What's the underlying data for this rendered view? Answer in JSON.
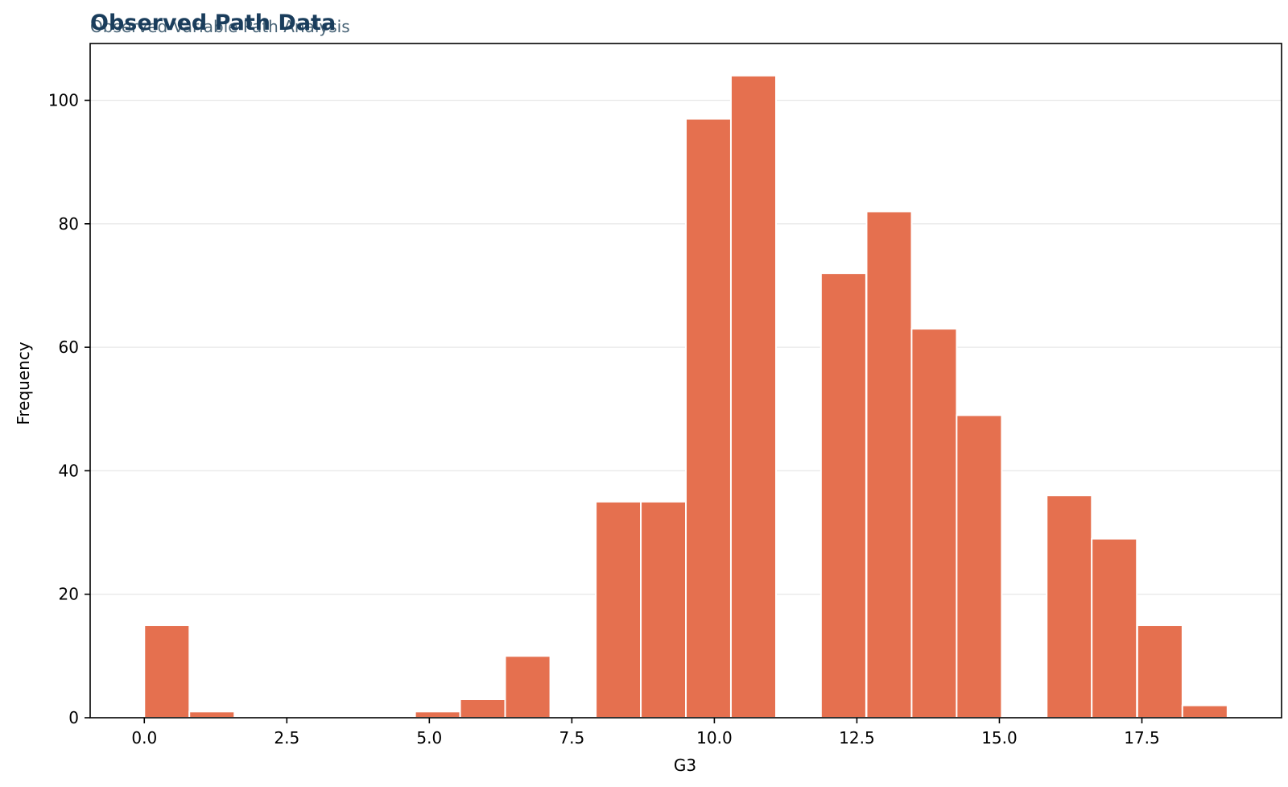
{
  "chart_data": {
    "type": "bar",
    "title": "Observed Path Data",
    "subtitle": "Observed Variable Path Analysis",
    "xlabel": "G3",
    "ylabel": "Frequency",
    "bar_color": "#e5704f",
    "bar_edge_color": "#ffffff",
    "title_color": "#1a3d5c",
    "subtitle_color": "#4a6578",
    "grid": "y-only",
    "bin_width": 0.7916,
    "bins": [
      {
        "x": 0.0,
        "count": 15
      },
      {
        "x": 0.79,
        "count": 1
      },
      {
        "x": 4.75,
        "count": 1
      },
      {
        "x": 5.54,
        "count": 3
      },
      {
        "x": 6.33,
        "count": 10
      },
      {
        "x": 7.92,
        "count": 35
      },
      {
        "x": 8.71,
        "count": 35
      },
      {
        "x": 9.5,
        "count": 97
      },
      {
        "x": 10.29,
        "count": 104
      },
      {
        "x": 11.87,
        "count": 72
      },
      {
        "x": 12.67,
        "count": 82
      },
      {
        "x": 13.46,
        "count": 63
      },
      {
        "x": 14.25,
        "count": 49
      },
      {
        "x": 15.83,
        "count": 36
      },
      {
        "x": 16.62,
        "count": 29
      },
      {
        "x": 17.42,
        "count": 15
      },
      {
        "x": 18.21,
        "count": 2
      }
    ],
    "xlim": [
      -0.95,
      19.95
    ],
    "ylim": [
      0,
      109.2
    ],
    "xticks": [
      0.0,
      2.5,
      5.0,
      7.5,
      10.0,
      12.5,
      15.0,
      17.5
    ],
    "xtick_labels": [
      "0.0",
      "2.5",
      "5.0",
      "7.5",
      "10.0",
      "12.5",
      "15.0",
      "17.5"
    ],
    "yticks": [
      0,
      20,
      40,
      60,
      80,
      100
    ],
    "ytick_labels": [
      "0",
      "20",
      "40",
      "60",
      "80",
      "100"
    ]
  }
}
